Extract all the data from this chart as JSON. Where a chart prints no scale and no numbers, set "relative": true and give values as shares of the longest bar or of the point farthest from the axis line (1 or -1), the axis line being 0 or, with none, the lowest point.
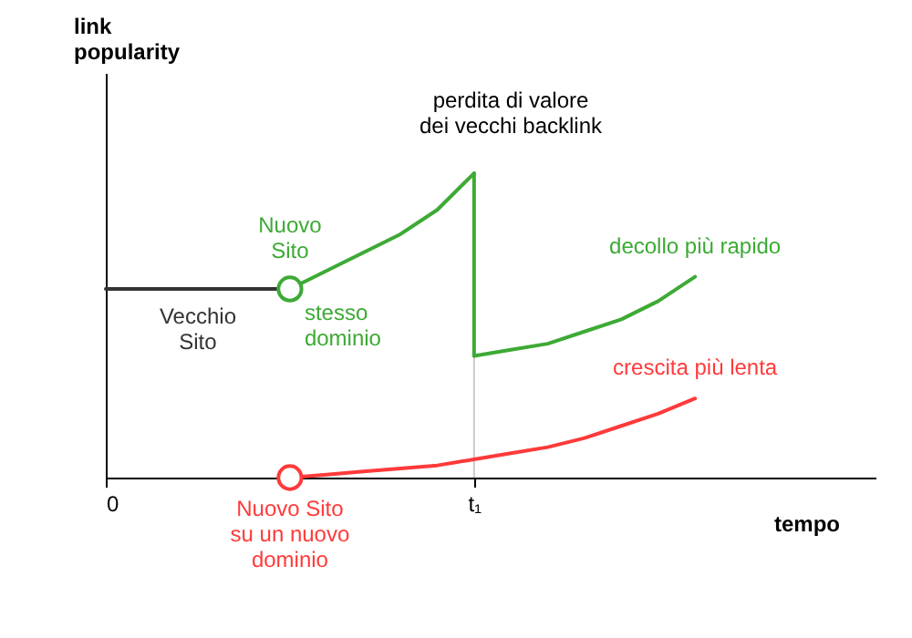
{
  "chart_data": {
    "type": "line",
    "relative": true,
    "xlabel": "tempo",
    "ylabel": "link popularity",
    "categories": [
      "0",
      null,
      null,
      null,
      null,
      null,
      null,
      null,
      null,
      null,
      "t₁",
      null,
      null,
      null,
      null,
      null,
      null,
      null,
      null,
      null,
      null
    ],
    "series": [
      {
        "name": "Vecchio Sito",
        "color": "#333333",
        "values": [
          0.62,
          0.62,
          0.62,
          0.62,
          0.62,
          0.62,
          null,
          null,
          null,
          null,
          null,
          null,
          null,
          null,
          null,
          null,
          null,
          null,
          null,
          null,
          null
        ]
      },
      {
        "color": "#3daa35",
        "values": [
          null,
          null,
          null,
          null,
          null,
          0.62,
          0.68,
          0.74,
          0.8,
          0.88,
          1.0,
          null,
          null,
          null,
          null,
          null,
          null,
          null,
          null,
          null,
          null
        ]
      },
      {
        "name": "decollo più rapido",
        "color": "#3daa35",
        "values": [
          null,
          null,
          null,
          null,
          null,
          null,
          null,
          null,
          null,
          null,
          0.4,
          0.42,
          0.44,
          0.48,
          0.52,
          0.58,
          0.66,
          null,
          null,
          null,
          null
        ]
      },
      {
        "name": "crescita più lenta",
        "color": "#ff3a3a",
        "values": [
          null,
          null,
          null,
          null,
          null,
          0,
          0.01,
          0.02,
          0.03,
          0.04,
          0.06,
          0.08,
          0.1,
          0.13,
          0.17,
          0.21,
          0.26,
          null,
          null,
          null,
          null
        ]
      },
      {
        "type": "scatter",
        "color": "#3daa35",
        "values": [
          null,
          null,
          null,
          null,
          null,
          0.62,
          null,
          null,
          null,
          null,
          null,
          null,
          null,
          null,
          null,
          null,
          null,
          null,
          null,
          null,
          null
        ]
      },
      {
        "type": "scatter",
        "color": "#ff3a3a",
        "values": [
          null,
          null,
          null,
          null,
          null,
          0,
          null,
          null,
          null,
          null,
          null,
          null,
          null,
          null,
          null,
          null,
          null,
          null,
          null,
          null,
          null
        ]
      }
    ],
    "ref_lines": [
      {
        "axis": "x",
        "value": "t₁",
        "color": "#c8c8c8"
      }
    ],
    "annotations": [
      {
        "text": "Nuovo Sito",
        "y": 0.62
      },
      "stesso dominio",
      {
        "text": "Nuovo Sito su un nuovo dominio",
        "y": 0
      },
      "perdita di valore dei vecchi backlink"
    ]
  }
}
